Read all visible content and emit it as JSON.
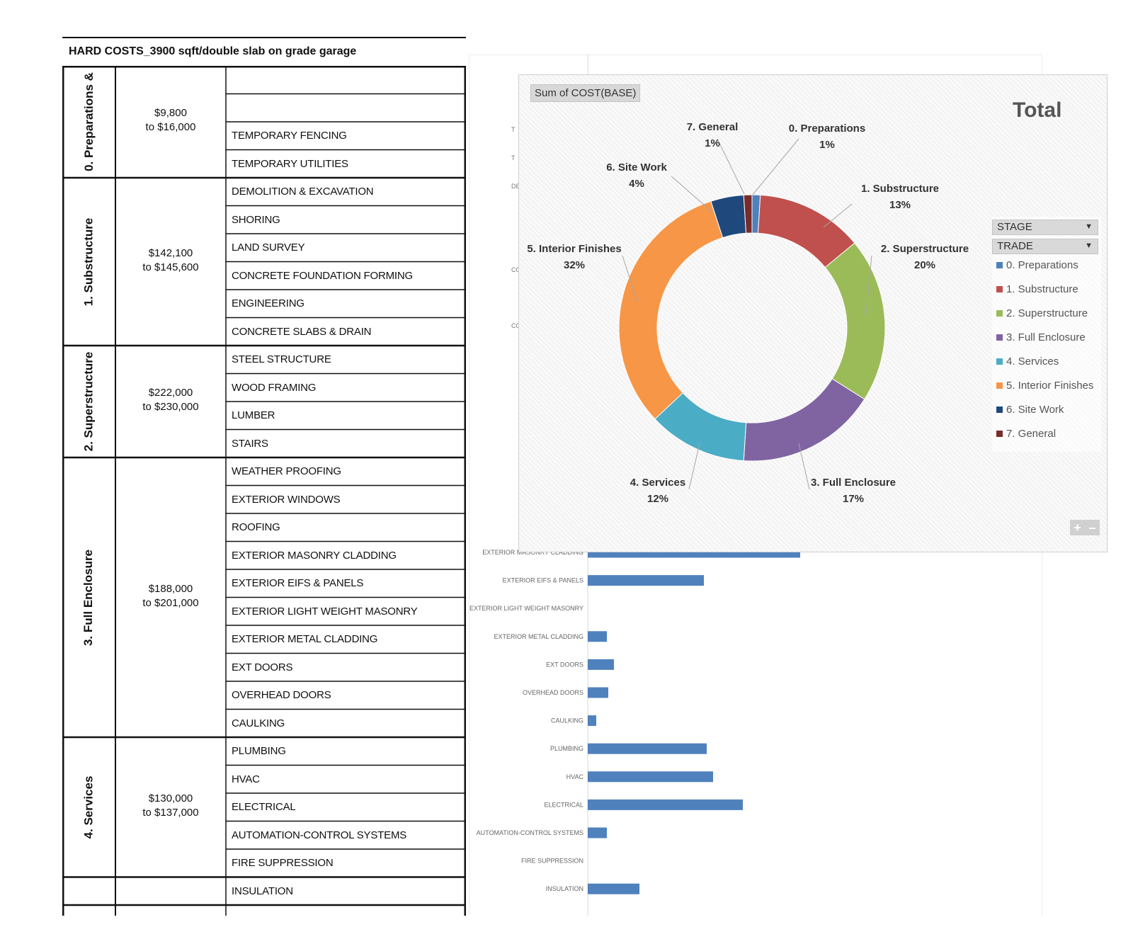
{
  "document": {
    "title": "HARD COSTS_3900 sqft/double slab on grade garage"
  },
  "table": {
    "stages": [
      {
        "label": "0. Preparations &",
        "range_from": "$9,800",
        "range_to": "to $16,000",
        "rows": [
          "",
          "",
          "TEMPORARY FENCING",
          "TEMPORARY UTILITIES"
        ]
      },
      {
        "label": "1. Substructure",
        "range_from": "$142,100",
        "range_to": "to $145,600",
        "rows": [
          "DEMOLITION & EXCAVATION",
          "SHORING",
          "LAND SURVEY",
          "CONCRETE FOUNDATION FORMING",
          "ENGINEERING",
          "CONCRETE SLABS & DRAIN"
        ]
      },
      {
        "label": "2. Superstructure",
        "range_from": "$222,000",
        "range_to": "to $230,000",
        "rows": [
          "STEEL STRUCTURE",
          "WOOD FRAMING",
          "LUMBER",
          "STAIRS"
        ]
      },
      {
        "label": "3. Full Enclosure",
        "range_from": "$188,000",
        "range_to": "to $201,000",
        "rows": [
          "WEATHER PROOFING",
          "EXTERIOR WINDOWS",
          "ROOFING",
          "EXTERIOR MASONRY CLADDING",
          "EXTERIOR EIFS & PANELS",
          "EXTERIOR LIGHT WEIGHT MASONRY",
          "EXTERIOR METAL CLADDING",
          "EXT DOORS",
          "OVERHEAD DOORS",
          "CAULKING"
        ]
      },
      {
        "label": "4. Services",
        "range_from": "$130,000",
        "range_to": "to $137,000",
        "rows": [
          "PLUMBING",
          "HVAC",
          "ELECTRICAL",
          "AUTOMATION-CONTROL SYSTEMS",
          "FIRE SUPPRESSION"
        ]
      },
      {
        "label": "",
        "range_from": "",
        "range_to": "",
        "rows": [
          "INSULATION"
        ]
      }
    ]
  },
  "chart_data": [
    {
      "type": "pie",
      "variant": "doughnut",
      "title": "Total",
      "field_button": "Sum of COST(BASE)",
      "filters": [
        "STAGE",
        "TRADE"
      ],
      "legend_position": "right",
      "slices": [
        {
          "name": "0. Preparations",
          "label": "0. Preparations",
          "pct_label": "1%",
          "value": 1,
          "color": "#4f81bd"
        },
        {
          "name": "1. Substructure",
          "label": "1. Substructure",
          "pct_label": "13%",
          "value": 13,
          "color": "#c0504d"
        },
        {
          "name": "2. Superstructure",
          "label": "2. Superstructure",
          "pct_label": "20%",
          "value": 20,
          "color": "#9bbb59"
        },
        {
          "name": "3. Full Enclosure",
          "label": "3. Full Enclosure",
          "pct_label": "17%",
          "value": 17,
          "color": "#8064a2"
        },
        {
          "name": "4. Services",
          "label": "4. Services",
          "pct_label": "12%",
          "value": 12,
          "color": "#4bacc6"
        },
        {
          "name": "5. Interior Finishes",
          "label": "5. Interior Finishes",
          "pct_label": "32%",
          "value": 32,
          "color": "#f79646"
        },
        {
          "name": "6. Site Work",
          "label": "6. Site Work",
          "pct_label": "4%",
          "value": 4,
          "color": "#1f497d"
        },
        {
          "name": "7. General",
          "label": "7. General",
          "pct_label": "1%",
          "value": 1,
          "color": "#772c2a"
        }
      ]
    },
    {
      "type": "bar",
      "orientation": "horizontal",
      "bar_color": "#4f81bd",
      "partial_labels": [
        "T",
        "T",
        "DEMOL",
        "CONCRETE FO",
        "CONC"
      ],
      "categories": [
        "EXTERIOR MASONRY CLADDING",
        "EXTERIOR EIFS & PANELS",
        "EXTERIOR LIGHT WEIGHT MASONRY",
        "EXTERIOR METAL CLADDING",
        "EXT DOORS",
        "OVERHEAD DOORS",
        "CAULKING",
        "PLUMBING",
        "HVAC",
        "ELECTRICAL",
        "AUTOMATION-CONTROL SYSTEMS",
        "FIRE SUPPRESSION",
        "INSULATION"
      ],
      "values": [
        300,
        164,
        0,
        27,
        37,
        29,
        12,
        168,
        177,
        219,
        27,
        0,
        73
      ]
    }
  ]
}
